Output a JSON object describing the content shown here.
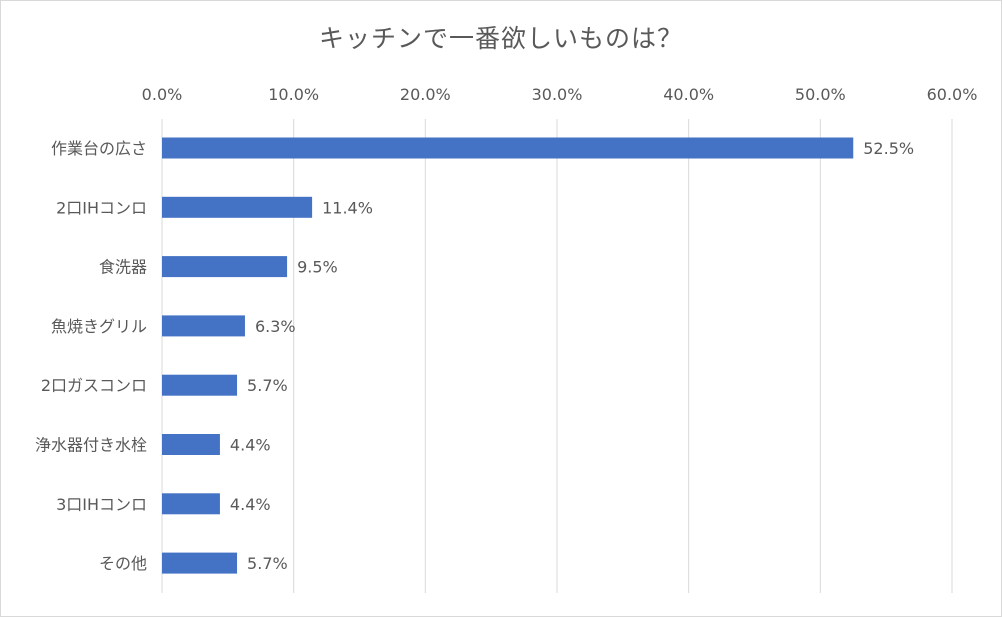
{
  "chart_data": {
    "type": "bar",
    "orientation": "horizontal",
    "title": "キッチンで一番欲しいものは？",
    "categories": [
      "作業台の広さ",
      "2口IHコンロ",
      "食洗器",
      "魚焼きグリル",
      "2口ガスコンロ",
      "浄水器付き水栓",
      "3口IHコンロ",
      "その他"
    ],
    "values": [
      52.5,
      11.4,
      9.5,
      6.3,
      5.7,
      4.4,
      4.4,
      5.7
    ],
    "data_labels": [
      "52.5%",
      "11.4%",
      "9.5%",
      "6.3%",
      "5.7%",
      "4.4%",
      "4.4%",
      "5.7%"
    ],
    "x_ticks": [
      "0.0%",
      "10.0%",
      "20.0%",
      "30.0%",
      "40.0%",
      "50.0%",
      "60.0%"
    ],
    "xlim": [
      0,
      60
    ],
    "x_axis_position": "top",
    "grid": true,
    "legend": "none",
    "bar_color": "#4472c4",
    "grid_color": "#d9d9d9",
    "text_color": "#595959"
  }
}
